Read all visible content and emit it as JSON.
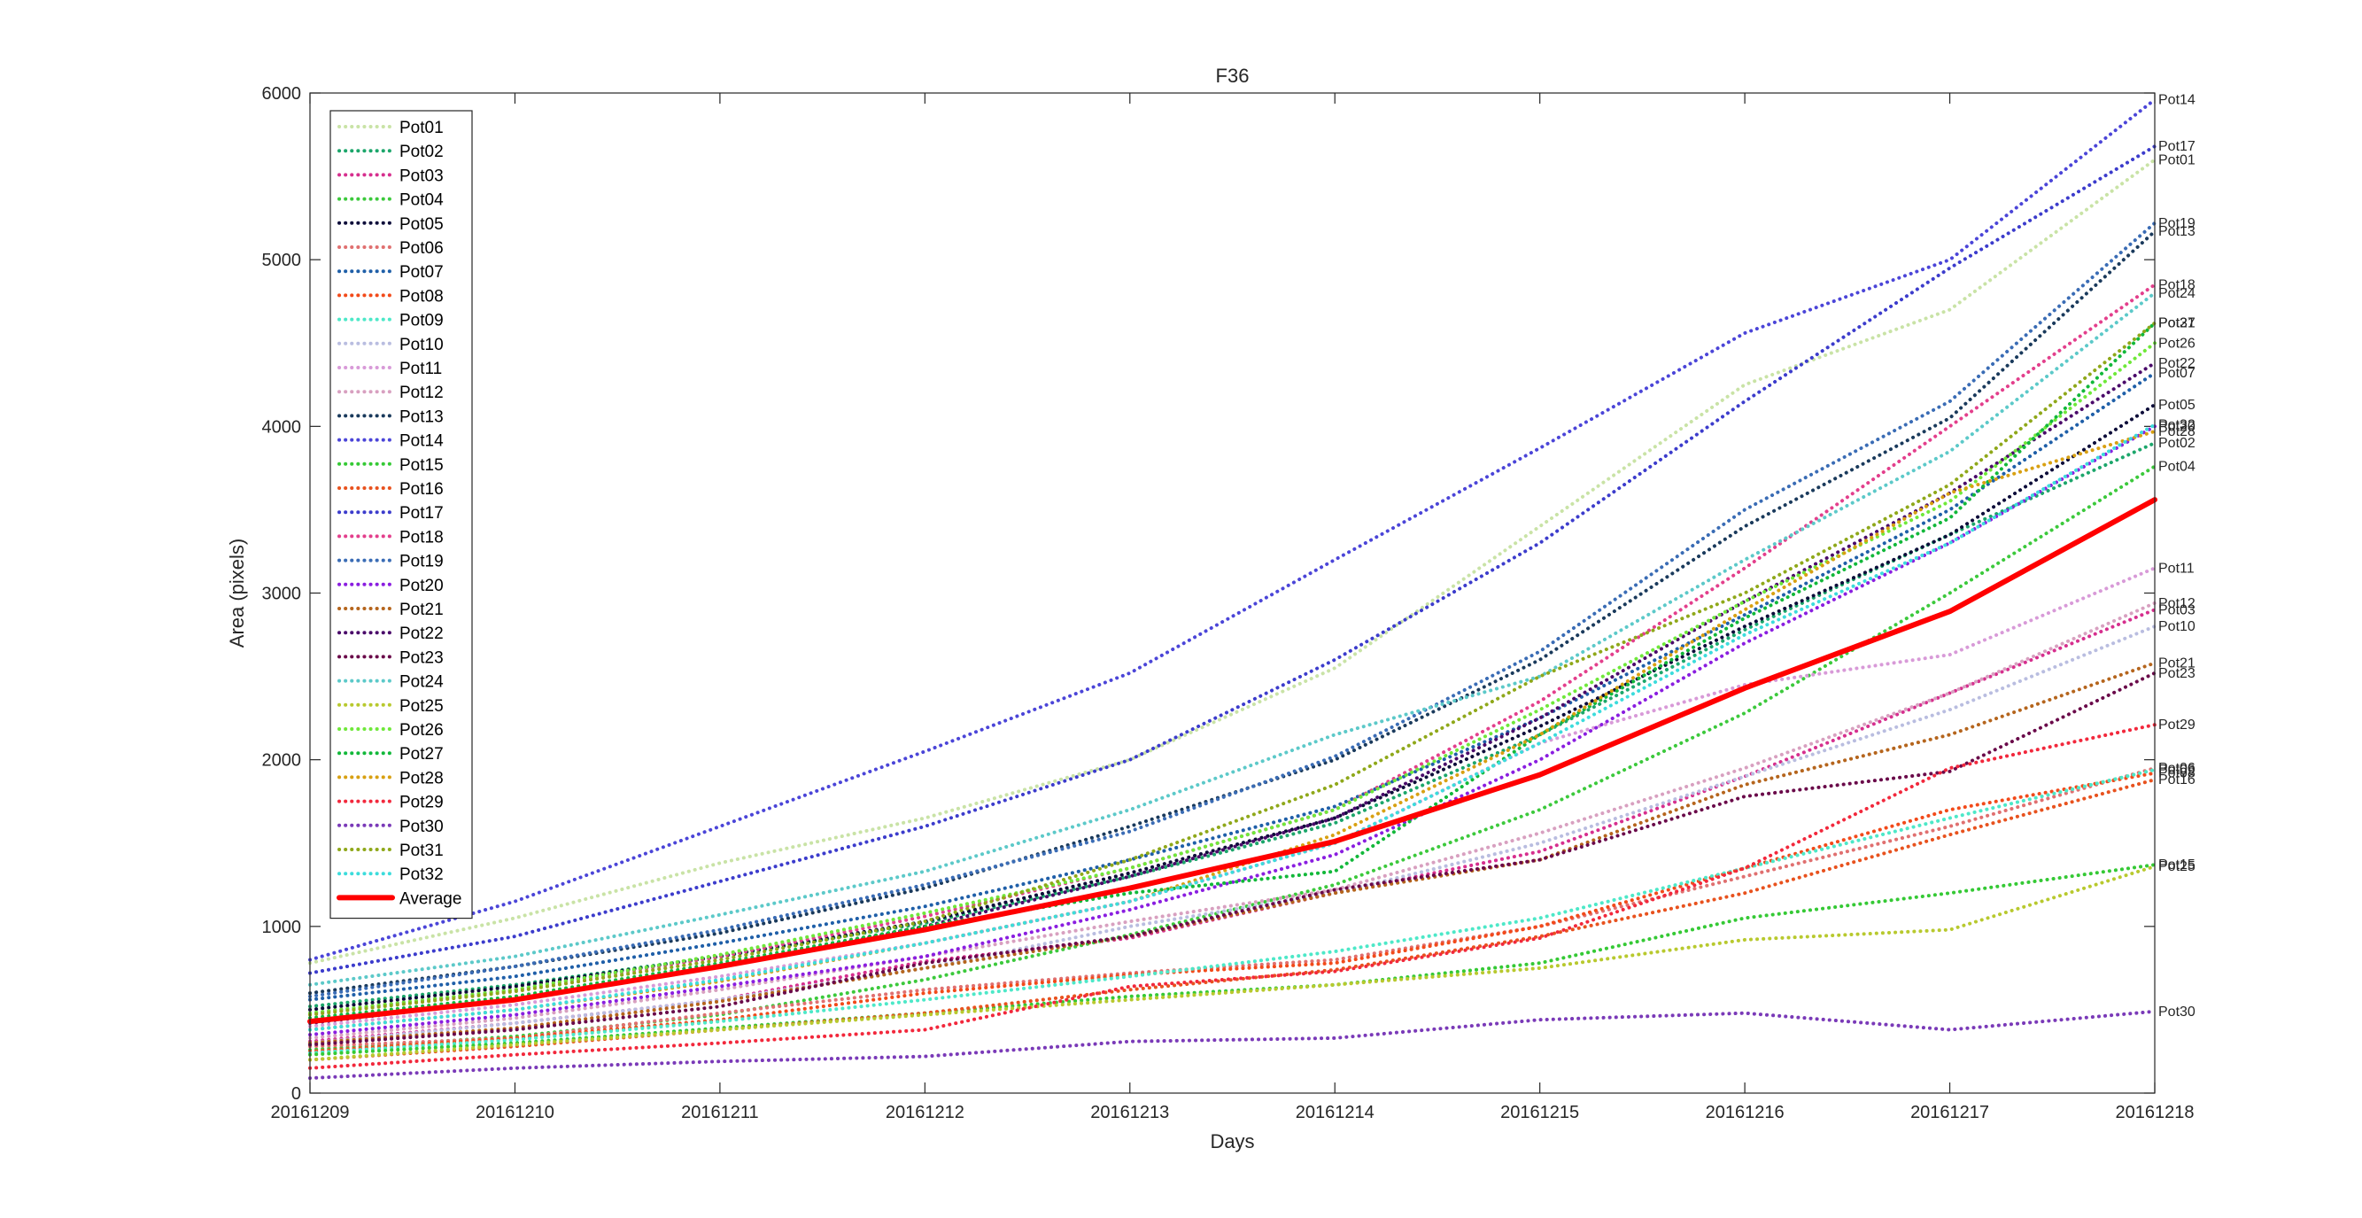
{
  "chart_data": {
    "type": "line",
    "title": "F36",
    "xlabel": "Days",
    "ylabel": "Area (pixels)",
    "x": [
      "20161209",
      "20161210",
      "20161211",
      "20161212",
      "20161213",
      "20161214",
      "20161215",
      "20161216",
      "20161217",
      "20161218"
    ],
    "ylim": [
      0,
      6000
    ],
    "yticks": [
      0,
      1000,
      2000,
      3000,
      4000,
      5000,
      6000
    ],
    "grid": false,
    "legend_position": "top-left",
    "series": [
      {
        "name": "Pot01",
        "color": "#c9e3a6",
        "style": "dotted",
        "end_label": "Pot01",
        "values": [
          780,
          1050,
          1380,
          1650,
          2000,
          2550,
          3400,
          4250,
          4700,
          5600
        ]
      },
      {
        "name": "Pot02",
        "color": "#1ca66b",
        "style": "dotted",
        "end_label": "Pot02",
        "values": [
          520,
          650,
          820,
          1020,
          1300,
          1620,
          2150,
          2780,
          3350,
          3900
        ]
      },
      {
        "name": "Pot03",
        "color": "#d62f8e",
        "style": "dotted",
        "end_label": "Pot03",
        "values": [
          310,
          420,
          560,
          790,
          930,
          1200,
          1450,
          1900,
          2400,
          2900
        ]
      },
      {
        "name": "Pot04",
        "color": "#3cc93c",
        "style": "dotted",
        "end_label": "Pot04",
        "values": [
          260,
          340,
          470,
          680,
          950,
          1250,
          1700,
          2280,
          3000,
          3760
        ]
      },
      {
        "name": "Pot05",
        "color": "#0d0d3a",
        "style": "dotted",
        "end_label": "Pot05",
        "values": [
          500,
          640,
          820,
          1030,
          1320,
          1650,
          2200,
          2800,
          3350,
          4130
        ]
      },
      {
        "name": "Pot06",
        "color": "#e07070",
        "style": "dotted",
        "end_label": "Pot06",
        "values": [
          280,
          330,
          480,
          620,
          720,
          800,
          1000,
          1300,
          1600,
          1950
        ]
      },
      {
        "name": "Pot07",
        "color": "#1f5fa8",
        "style": "dotted",
        "end_label": "Pot07",
        "values": [
          560,
          700,
          900,
          1120,
          1400,
          1720,
          2250,
          2870,
          3500,
          4320
        ]
      },
      {
        "name": "Pot08",
        "color": "#f24a1a",
        "style": "dotted",
        "end_label": "Pot08",
        "values": [
          250,
          330,
          440,
          600,
          710,
          780,
          1000,
          1350,
          1700,
          1920
        ]
      },
      {
        "name": "Pot09",
        "color": "#4de8c8",
        "style": "dotted",
        "end_label": "Pot09",
        "values": [
          240,
          320,
          430,
          560,
          700,
          850,
          1050,
          1350,
          1650,
          1940
        ]
      },
      {
        "name": "Pot10",
        "color": "#b9bde0",
        "style": "dotted",
        "end_label": "Pot10",
        "values": [
          300,
          420,
          560,
          750,
          1000,
          1200,
          1500,
          1900,
          2300,
          2800
        ]
      },
      {
        "name": "Pot11",
        "color": "#d89ad8",
        "style": "dotted",
        "end_label": "Pot11",
        "values": [
          400,
          530,
          700,
          900,
          1150,
          1500,
          2100,
          2450,
          2630,
          3150
        ]
      },
      {
        "name": "Pot12",
        "color": "#d8a0c0",
        "style": "dotted",
        "end_label": "Pot12",
        "values": [
          330,
          450,
          620,
          820,
          1030,
          1220,
          1560,
          1950,
          2400,
          2940
        ]
      },
      {
        "name": "Pot13",
        "color": "#1a3a5c",
        "style": "dotted",
        "end_label": "Pot13",
        "values": [
          600,
          760,
          960,
          1230,
          1600,
          2000,
          2600,
          3400,
          4050,
          5170
        ]
      },
      {
        "name": "Pot14",
        "color": "#4b45d8",
        "style": "dotted",
        "end_label": "Pot14",
        "values": [
          800,
          1150,
          1600,
          2050,
          2520,
          3200,
          3870,
          4560,
          5000,
          5960
        ]
      },
      {
        "name": "Pot15",
        "color": "#35c935",
        "style": "dotted",
        "end_label": "Pot15",
        "values": [
          230,
          300,
          390,
          480,
          580,
          650,
          780,
          1050,
          1200,
          1370
        ]
      },
      {
        "name": "Pot16",
        "color": "#e8521e",
        "style": "dotted",
        "end_label": "Pot16",
        "values": [
          200,
          280,
          380,
          480,
          620,
          740,
          940,
          1200,
          1550,
          1880
        ]
      },
      {
        "name": "Pot17",
        "color": "#3c3ccc",
        "style": "dotted",
        "end_label": "Pot17",
        "values": [
          720,
          940,
          1270,
          1600,
          2000,
          2600,
          3300,
          4150,
          4950,
          5680
        ]
      },
      {
        "name": "Pot18",
        "color": "#e33f8c",
        "style": "dotted",
        "end_label": "Pot18",
        "values": [
          480,
          620,
          820,
          1060,
          1350,
          1700,
          2350,
          3150,
          4000,
          4850
        ]
      },
      {
        "name": "Pot19",
        "color": "#3a6cb5",
        "style": "dotted",
        "end_label": "Pot19",
        "values": [
          580,
          760,
          980,
          1250,
          1570,
          2020,
          2650,
          3500,
          4150,
          5220
        ]
      },
      {
        "name": "Pot20",
        "color": "#8a1ee0",
        "style": "dotted",
        "end_label": "Pot20",
        "values": [
          350,
          470,
          640,
          820,
          1100,
          1430,
          2000,
          2700,
          3300,
          4000
        ]
      },
      {
        "name": "Pot21",
        "color": "#b5651d",
        "style": "dotted",
        "end_label": "Pot21",
        "values": [
          300,
          390,
          550,
          750,
          940,
          1200,
          1400,
          1850,
          2150,
          2580
        ]
      },
      {
        "name": "Pot22",
        "color": "#4a0a6a",
        "style": "dotted",
        "end_label": "Pot22",
        "values": [
          420,
          560,
          760,
          1000,
          1300,
          1650,
          2250,
          2950,
          3600,
          4380
        ]
      },
      {
        "name": "Pot23",
        "color": "#6a0a4a",
        "style": "dotted",
        "end_label": "Pot23",
        "values": [
          290,
          380,
          520,
          780,
          940,
          1220,
          1400,
          1780,
          1930,
          2520
        ]
      },
      {
        "name": "Pot24",
        "color": "#5cc9c9",
        "style": "dotted",
        "end_label": "Pot24",
        "values": [
          650,
          820,
          1070,
          1330,
          1700,
          2150,
          2500,
          3200,
          3850,
          4800
        ]
      },
      {
        "name": "Pot25",
        "color": "#b8c92e",
        "style": "dotted",
        "end_label": "Pot25",
        "values": [
          200,
          290,
          380,
          470,
          560,
          650,
          750,
          920,
          980,
          1360
        ]
      },
      {
        "name": "Pot26",
        "color": "#6fe83a",
        "style": "dotted",
        "end_label": "Pot26",
        "values": [
          480,
          620,
          830,
          1080,
          1350,
          1700,
          2300,
          2950,
          3550,
          4500
        ]
      },
      {
        "name": "Pot27",
        "color": "#12b83a",
        "style": "dotted",
        "end_label": "Pot27",
        "values": [
          450,
          580,
          780,
          1000,
          1200,
          1330,
          2150,
          2850,
          3450,
          4620
        ]
      },
      {
        "name": "Pot28",
        "color": "#d8a012",
        "style": "dotted",
        "end_label": "Pot28",
        "values": [
          380,
          500,
          670,
          900,
          1150,
          1550,
          2150,
          2900,
          3600,
          3970
        ]
      },
      {
        "name": "Pot29",
        "color": "#f2283c",
        "style": "dotted",
        "end_label": "Pot29",
        "values": [
          150,
          230,
          300,
          380,
          640,
          730,
          930,
          1350,
          1950,
          2210
        ]
      },
      {
        "name": "Pot30",
        "color": "#7a3ab8",
        "style": "dotted",
        "end_label": "Pot30",
        "values": [
          90,
          150,
          190,
          220,
          310,
          330,
          440,
          480,
          380,
          490
        ]
      },
      {
        "name": "Pot31",
        "color": "#8fa81a",
        "style": "dotted",
        "end_label": "Pot31",
        "values": [
          470,
          610,
          800,
          1030,
          1400,
          1850,
          2500,
          3000,
          3650,
          4620
        ]
      },
      {
        "name": "Pot32",
        "color": "#3cdcdc",
        "style": "dotted",
        "end_label": "Pot32",
        "values": [
          380,
          500,
          680,
          900,
          1150,
          1500,
          2100,
          2750,
          3300,
          4010
        ]
      },
      {
        "name": "Average",
        "color": "#ff0000",
        "style": "solid",
        "end_label": "",
        "values": [
          430,
          560,
          760,
          980,
          1230,
          1510,
          1910,
          2430,
          2890,
          3560
        ]
      }
    ]
  }
}
